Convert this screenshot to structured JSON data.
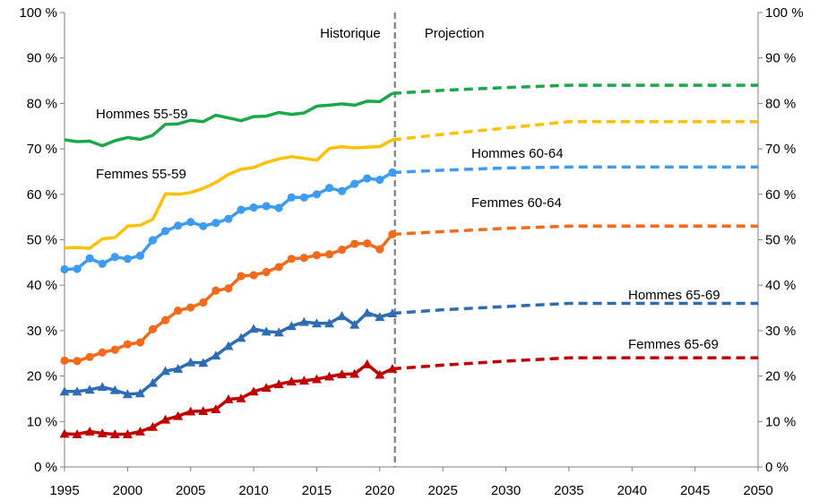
{
  "chart_data": {
    "type": "line",
    "title": "",
    "xlabel": "",
    "ylabel": "",
    "x_range": [
      1995,
      2050
    ],
    "ylim": [
      0,
      100
    ],
    "y_unit_suffix": " %",
    "x_ticks": [
      1995,
      2000,
      2005,
      2010,
      2015,
      2020,
      2025,
      2030,
      2035,
      2040,
      2045,
      2050
    ],
    "y_ticks": [
      0,
      10,
      20,
      30,
      40,
      50,
      60,
      70,
      80,
      90,
      100
    ],
    "grid": false,
    "legend": "none",
    "annotations": {
      "historical_label": "Historique",
      "projection_label": "Projection",
      "divider_year": 2021.2
    },
    "series": [
      {
        "name": "Hommes 55-59",
        "color": "#1BA84A",
        "marker": "none",
        "historical_x": [
          1995,
          1996,
          1997,
          1998,
          1999,
          2000,
          2001,
          2002,
          2003,
          2004,
          2005,
          2006,
          2007,
          2008,
          2009,
          2010,
          2011,
          2012,
          2013,
          2014,
          2015,
          2016,
          2017,
          2018,
          2019,
          2020,
          2021
        ],
        "historical_y": [
          72.0,
          71.6,
          71.7,
          70.7,
          71.8,
          72.5,
          72.1,
          73.0,
          75.4,
          75.5,
          76.3,
          76.0,
          77.4,
          76.8,
          76.2,
          77.1,
          77.2,
          78.0,
          77.6,
          77.9,
          79.4,
          79.6,
          79.9,
          79.6,
          80.5,
          80.4,
          82.2
        ],
        "projection_x": [
          2021,
          2025,
          2030,
          2035,
          2040,
          2045,
          2050
        ],
        "projection_y": [
          82.2,
          82.9,
          83.5,
          84.0,
          84.0,
          84.0,
          84.0
        ]
      },
      {
        "name": "Femmes 55-59",
        "color": "#FFC000",
        "marker": "none",
        "historical_x": [
          1995,
          1996,
          1997,
          1998,
          1999,
          2000,
          2001,
          2002,
          2003,
          2004,
          2005,
          2006,
          2007,
          2008,
          2009,
          2010,
          2011,
          2012,
          2013,
          2014,
          2015,
          2016,
          2017,
          2018,
          2019,
          2020,
          2021
        ],
        "historical_y": [
          48.2,
          48.3,
          48.1,
          50.2,
          50.5,
          53.0,
          53.2,
          54.5,
          60.1,
          60.0,
          60.4,
          61.3,
          62.6,
          64.4,
          65.5,
          65.9,
          67.0,
          67.8,
          68.3,
          67.9,
          67.5,
          70.1,
          70.5,
          70.2,
          70.4,
          70.5,
          72.0
        ],
        "projection_x": [
          2021,
          2025,
          2030,
          2035,
          2040,
          2045,
          2050
        ],
        "projection_y": [
          72.0,
          73.2,
          74.6,
          76.0,
          76.0,
          76.0,
          76.0
        ]
      },
      {
        "name": "Hommes 60-64",
        "color": "#3D9BF0",
        "marker": "circle",
        "historical_x": [
          1995,
          1996,
          1997,
          1998,
          1999,
          2000,
          2001,
          2002,
          2003,
          2004,
          2005,
          2006,
          2007,
          2008,
          2009,
          2010,
          2011,
          2012,
          2013,
          2014,
          2015,
          2016,
          2017,
          2018,
          2019,
          2020,
          2021
        ],
        "historical_y": [
          43.5,
          43.6,
          45.9,
          44.7,
          46.2,
          45.8,
          46.5,
          49.9,
          51.9,
          53.1,
          53.9,
          53.0,
          53.7,
          54.6,
          56.6,
          57.1,
          57.4,
          57.0,
          59.3,
          59.3,
          60.0,
          61.4,
          60.7,
          62.3,
          63.5,
          63.2,
          64.8
        ],
        "projection_x": [
          2021,
          2025,
          2030,
          2035,
          2040,
          2045,
          2050
        ],
        "projection_y": [
          64.8,
          65.3,
          65.8,
          66.0,
          66.0,
          66.0,
          66.0
        ]
      },
      {
        "name": "Femmes 60-64",
        "color": "#F26B1D",
        "marker": "circle",
        "historical_x": [
          1995,
          1996,
          1997,
          1998,
          1999,
          2000,
          2001,
          2002,
          2003,
          2004,
          2005,
          2006,
          2007,
          2008,
          2009,
          2010,
          2011,
          2012,
          2013,
          2014,
          2015,
          2016,
          2017,
          2018,
          2019,
          2020,
          2021
        ],
        "historical_y": [
          23.4,
          23.3,
          24.2,
          25.2,
          25.8,
          27.0,
          27.4,
          30.3,
          32.3,
          34.4,
          35.1,
          36.2,
          38.8,
          39.3,
          42.0,
          42.2,
          42.9,
          44.0,
          45.8,
          46.0,
          46.6,
          46.8,
          47.8,
          49.1,
          49.2,
          47.9,
          51.2
        ],
        "projection_x": [
          2021,
          2025,
          2030,
          2035,
          2040,
          2045,
          2050
        ],
        "projection_y": [
          51.2,
          51.8,
          52.5,
          53.0,
          53.0,
          53.0,
          53.0
        ]
      },
      {
        "name": "Hommes 65-69",
        "color": "#2E6DB4",
        "marker": "triangle",
        "historical_x": [
          1995,
          1996,
          1997,
          1998,
          1999,
          2000,
          2001,
          2002,
          2003,
          2004,
          2005,
          2006,
          2007,
          2008,
          2009,
          2010,
          2011,
          2012,
          2013,
          2014,
          2015,
          2016,
          2017,
          2018,
          2019,
          2020,
          2021
        ],
        "historical_y": [
          16.6,
          16.6,
          17.0,
          17.6,
          16.9,
          16.0,
          16.2,
          18.5,
          21.1,
          21.6,
          23.0,
          22.9,
          24.5,
          26.6,
          28.4,
          30.4,
          29.8,
          29.6,
          31.0,
          31.9,
          31.6,
          31.6,
          33.2,
          31.3,
          33.9,
          33.0,
          33.8
        ],
        "projection_x": [
          2021,
          2025,
          2030,
          2035,
          2040,
          2045,
          2050
        ],
        "projection_y": [
          33.8,
          34.6,
          35.3,
          36.0,
          36.0,
          36.0,
          36.0
        ]
      },
      {
        "name": "Femmes 65-69",
        "color": "#C00000",
        "marker": "triangle",
        "historical_x": [
          1995,
          1996,
          1997,
          1998,
          1999,
          2000,
          2001,
          2002,
          2003,
          2004,
          2005,
          2006,
          2007,
          2008,
          2009,
          2010,
          2011,
          2012,
          2013,
          2014,
          2015,
          2016,
          2017,
          2018,
          2019,
          2020,
          2021
        ],
        "historical_y": [
          7.3,
          7.2,
          7.8,
          7.4,
          7.2,
          7.2,
          7.8,
          8.8,
          10.4,
          11.2,
          12.2,
          12.3,
          12.7,
          14.9,
          15.1,
          16.6,
          17.4,
          18.2,
          18.8,
          19.0,
          19.3,
          19.9,
          20.4,
          20.5,
          22.6,
          20.3,
          21.6
        ],
        "projection_x": [
          2021,
          2025,
          2030,
          2035,
          2040,
          2045,
          2050
        ],
        "projection_y": [
          21.6,
          22.4,
          23.3,
          24.0,
          24.0,
          24.0,
          24.0
        ]
      }
    ],
    "series_labels": [
      {
        "text": "Hommes 55-59",
        "series": 0
      },
      {
        "text": "Femmes 55-59",
        "series": 1
      },
      {
        "text": "Hommes 60-64",
        "series": 2
      },
      {
        "text": "Femmes 60-64",
        "series": 3
      },
      {
        "text": "Hommes 65-69",
        "series": 4
      },
      {
        "text": "Femmes 65-69",
        "series": 5
      }
    ]
  }
}
